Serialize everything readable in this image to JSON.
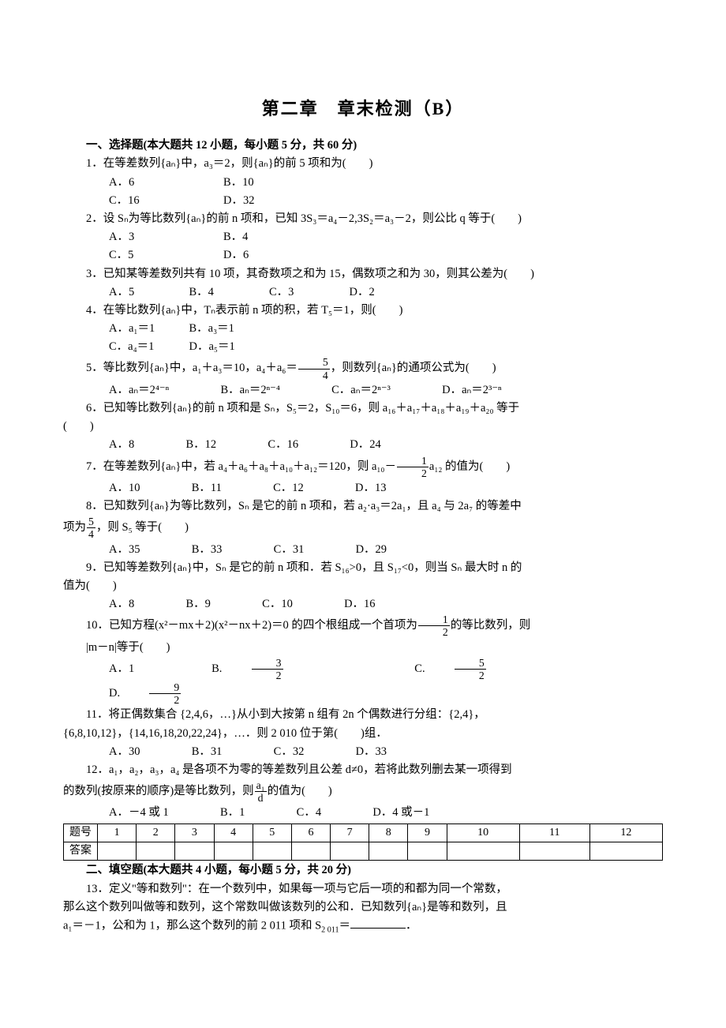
{
  "title": "第二章　章末检测（B）",
  "sec1": "一、选择题(本大题共 12 小题，每小题 5 分，共 60 分)",
  "q1": "1．在等差数列{aₙ}中，a₃＝2，则{aₙ}的前 5 项和为(　　)",
  "q1A": "A．6",
  "q1B": "B．10",
  "q1C": "C．16",
  "q1D": "D．32",
  "q2": "2．设 Sₙ为等比数列{aₙ}的前 n 项和，已知 3S₃＝a₄－2,3S₂＝a₃－2，则公比 q 等于(　　)",
  "q2A": "A．3",
  "q2B": "B．4",
  "q2C": "C．5",
  "q2D": "D．6",
  "q3": "3．已知某等差数列共有 10 项，其奇数项之和为 15，偶数项之和为 30，则其公差为(　　)",
  "q3A": "A．5",
  "q3B": "B．4",
  "q3C": "C．3",
  "q3D": "D．2",
  "q4": "4．在等比数列{aₙ}中，Tₙ表示前 n 项的积，若 T₅＝1，则(　　)",
  "q4A": "A．a₁＝1",
  "q4B": "B．a₃＝1",
  "q4C": "C．a₄＝1",
  "q4D": "D．a₅＝1",
  "q5a": "5．等比数列{aₙ}中，a₁＋a₃＝10，a₄＋a₆＝",
  "q5b": "，则数列{aₙ}的通项公式为(　　)",
  "q5A": "A．aₙ＝2⁴⁻ⁿ",
  "q5B": "B．aₙ＝2ⁿ⁻⁴",
  "q5C": "C．aₙ＝2ⁿ⁻³",
  "q5D": "D．aₙ＝2³⁻ⁿ",
  "q6": "6．已知等比数列{aₙ}的前 n 项和是 Sₙ，S₅＝2，S₁₀＝6，则 a₁₆＋a₁₇＋a₁₈＋a₁₉＋a₂₀ 等于",
  "q6b": "(　　)",
  "q6A": "A．8",
  "q6B": "B．12",
  "q6C": "C．16",
  "q6D": "D．24",
  "q7a": "7．在等差数列{aₙ}中，若 a₄＋a₆＋a₈＋a₁₀＋a₁₂＝120，则 a₁₀－",
  "q7b": "a₁₂ 的值为(　　)",
  "q7A": "A．10",
  "q7B": "B．11",
  "q7C": "C．12",
  "q7D": "D．13",
  "q8": "8．已知数列{aₙ}为等比数列，Sₙ 是它的前 n 项和，若 a₂·a₃＝2a₁，且 a₄ 与 2a₇ 的等差中",
  "q8b1": "项为",
  "q8b2": "，则 S₅ 等于(　　)",
  "q8A": "A．35",
  "q8B": "B．33",
  "q8C": "C．31",
  "q8D": "D．29",
  "q9": "9．已知等差数列{aₙ}中，Sₙ 是它的前 n 项和．若 S₁₆>0，且 S₁₇<0，则当 Sₙ 最大时 n 的",
  "q9b": "值为(　　)",
  "q9A": "A．8",
  "q9B": "B．9",
  "q9C": "C．10",
  "q9D": "D．16",
  "q10a": "10．已知方程(x²－mx＋2)(x²－nx＋2)＝0 的四个根组成一个首项为",
  "q10b": "的等比数列，则",
  "q10c": "|m－n|等于(　　)",
  "q10A": "A．1",
  "q10B": "B.",
  "q10C": "C.",
  "q10D": "D.",
  "q11": "11．将正偶数集合 {2,4,6，…}从小到大按第 n 组有 2n 个偶数进行分组：{2,4}，",
  "q11b": "{6,8,10,12}，{14,16,18,20,22,24}，…．则 2 010 位于第(　　)组．",
  "q11A": "A．30",
  "q11B": "B．31",
  "q11C": "C．32",
  "q11D": "D．33",
  "q12": "12．a₁，a₂，a₃，a₄ 是各项不为零的等差数列且公差 d≠0，若将此数列删去某一项得到",
  "q12b1": "的数列(按原来的顺序)是等比数列，则",
  "q12b2": "的值为(　　)",
  "q12A": "A．－4 或 1",
  "q12B": "B．1",
  "q12C": "C．4",
  "q12D": "D．4 或－1",
  "tbl_hdr": "题号",
  "tbl_ans": "答案",
  "cols": [
    "1",
    "2",
    "3",
    "4",
    "5",
    "6",
    "7",
    "8",
    "9",
    "10",
    "11",
    "12"
  ],
  "sec2": "二、填空题(本大题共 4 小题，每小题 5 分，共 20 分)",
  "q13a": "13．定义\"等和数列\"：在一个数列中，如果每一项与它后一项的和都为同一个常数，",
  "q13b": "那么这个数列叫做等和数列，这个常数叫做该数列的公和．已知数列{aₙ}是等和数列，且",
  "q13c1": "a₁＝－1，公和为 1，那么这个数列的前 2 011 项和 S",
  "q13c2": "＝",
  "q13c3": "．",
  "fracs": {
    "f54n": "5",
    "f54d": "4",
    "f12n": "1",
    "f12d": "2",
    "f32n": "3",
    "f32d": "2",
    "f52n": "5",
    "f52d": "2",
    "f92n": "9",
    "f92d": "2",
    "fa1dn": "a₁",
    "fa1dd": "d"
  },
  "sub2011": "2 011"
}
